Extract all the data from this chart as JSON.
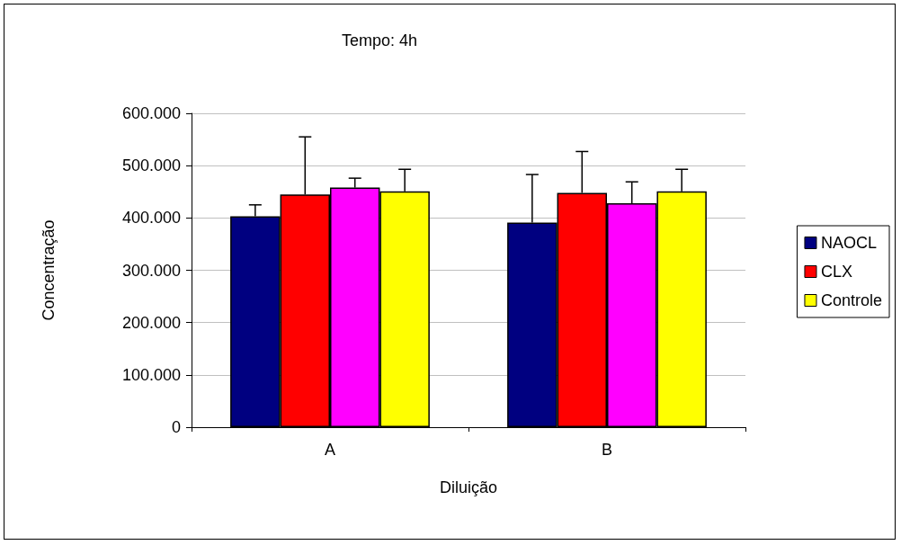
{
  "chart_data": {
    "type": "bar",
    "title": "Tempo: 4h",
    "xlabel": "Diluição",
    "ylabel": "Concentração",
    "categories": [
      "A",
      "B"
    ],
    "series": [
      {
        "name": "NAOCL",
        "color": "#000080",
        "values": [
          403000,
          391000
        ],
        "errors": [
          [
            403000,
            425000
          ],
          [
            391000,
            483000
          ]
        ]
      },
      {
        "name": "CLX",
        "color": "#ff0000",
        "values": [
          445000,
          448000
        ],
        "errors": [
          [
            445000,
            555000
          ],
          [
            448000,
            527000
          ]
        ]
      },
      {
        "color": "#ff00ff",
        "values": [
          458000,
          428000
        ],
        "errors": [
          [
            458000,
            476000
          ],
          [
            428000,
            469000
          ]
        ]
      },
      {
        "name": "Controle",
        "color": "#ffff00",
        "values": [
          451000,
          451000
        ],
        "errors": [
          [
            451000,
            493000
          ],
          [
            451000,
            493000
          ]
        ]
      }
    ],
    "ylim": [
      0,
      600000
    ],
    "yticks": [
      {
        "value": 0,
        "label": "0"
      },
      {
        "value": 100000,
        "label": "100.000"
      },
      {
        "value": 200000,
        "label": "200.000"
      },
      {
        "value": 300000,
        "label": "300.000"
      },
      {
        "value": 400000,
        "label": "400.000"
      },
      {
        "value": 500000,
        "label": "500.000"
      },
      {
        "value": 600000,
        "label": "600.000"
      }
    ],
    "grid": "y",
    "legend": "right"
  }
}
